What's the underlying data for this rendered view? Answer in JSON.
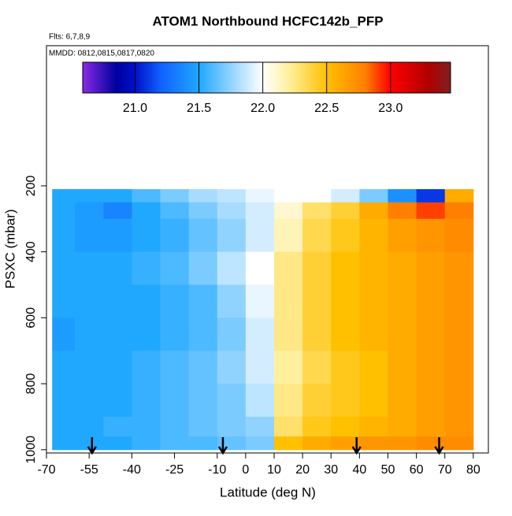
{
  "chart_data": {
    "type": "heatmap",
    "title": "ATOM1 Northbound HCFC142b_PFP",
    "subtitle": "Flts: 6,7,8,9",
    "annotation": "MMDD: 0812,0815,0817,0820",
    "x_label": "Latitude (deg N)",
    "y_label": "PSXC (mbar)",
    "x": [
      -68,
      -60,
      -50,
      -40,
      -30,
      -20,
      -10,
      0,
      10,
      20,
      30,
      40,
      50,
      60,
      70,
      80
    ],
    "y": [
      210,
      250,
      300,
      400,
      500,
      600,
      700,
      800,
      900,
      960,
      1000
    ],
    "values": [
      [
        21.5,
        21.5,
        21.5,
        21.6,
        21.7,
        21.8,
        21.85,
        21.95,
        22.0,
        22.0,
        21.9,
        21.7,
        21.4,
        21.1,
        22.6
      ],
      [
        21.5,
        21.45,
        21.35,
        21.5,
        21.6,
        21.7,
        21.8,
        21.9,
        22.1,
        22.3,
        22.4,
        22.6,
        22.8,
        22.9,
        22.8
      ],
      [
        21.5,
        21.45,
        21.45,
        21.5,
        21.55,
        21.65,
        21.75,
        21.9,
        22.15,
        22.35,
        22.45,
        22.55,
        22.65,
        22.7,
        22.75
      ],
      [
        21.5,
        21.5,
        21.5,
        21.55,
        21.6,
        21.7,
        21.85,
        22.0,
        22.25,
        22.4,
        22.5,
        22.55,
        22.6,
        22.65,
        22.7
      ],
      [
        21.5,
        21.5,
        21.5,
        21.5,
        21.55,
        21.6,
        21.75,
        21.95,
        22.25,
        22.4,
        22.5,
        22.55,
        22.6,
        22.65,
        22.7
      ],
      [
        21.45,
        21.5,
        21.5,
        21.5,
        21.55,
        21.6,
        21.7,
        21.9,
        22.25,
        22.4,
        22.5,
        22.55,
        22.6,
        22.65,
        22.7
      ],
      [
        21.5,
        21.5,
        21.5,
        21.55,
        21.6,
        21.65,
        21.75,
        21.9,
        22.2,
        22.35,
        22.45,
        22.5,
        22.6,
        22.65,
        22.7
      ],
      [
        21.5,
        21.5,
        21.5,
        21.55,
        21.6,
        21.65,
        21.7,
        21.85,
        22.25,
        22.4,
        22.45,
        22.5,
        22.6,
        22.65,
        22.7
      ],
      [
        21.5,
        21.5,
        21.55,
        21.55,
        21.6,
        21.65,
        21.7,
        21.75,
        22.3,
        22.45,
        22.5,
        22.55,
        22.6,
        22.65,
        22.7
      ],
      [
        21.5,
        21.5,
        21.5,
        21.55,
        21.6,
        21.6,
        21.65,
        21.7,
        22.5,
        22.6,
        22.65,
        22.7,
        22.7,
        22.75,
        22.75
      ]
    ],
    "xlim": [
      -70,
      85.3
    ],
    "ylim": [
      1010,
      -225
    ],
    "xticks": [
      -70,
      -55,
      -40,
      -25,
      -10,
      0,
      10,
      20,
      30,
      40,
      50,
      60,
      70,
      80
    ],
    "yticks": [
      200,
      400,
      600,
      800,
      1000
    ],
    "colorscale": [
      [
        20.59,
        "#8a2be2"
      ],
      [
        20.85,
        "#0000a0"
      ],
      [
        21.0,
        "#0010c8"
      ],
      [
        21.2,
        "#1060ff"
      ],
      [
        21.5,
        "#20a8ff"
      ],
      [
        21.8,
        "#a8dcff"
      ],
      [
        22.0,
        "#ffffff"
      ],
      [
        22.2,
        "#fff0a0"
      ],
      [
        22.5,
        "#ffc000"
      ],
      [
        22.8,
        "#ff8000"
      ],
      [
        23.0,
        "#ff0000"
      ],
      [
        23.3,
        "#b00000"
      ],
      [
        23.47,
        "#802020"
      ]
    ],
    "colorbar_lim": [
      20.59,
      23.47
    ],
    "colorbar_ticks": [
      {
        "value": 21,
        "label": "21.0"
      },
      21.5,
      {
        "value": 22,
        "label": "22.0"
      },
      22.5,
      {
        "value": 23,
        "label": "23.0"
      }
    ],
    "arrows": [
      -54,
      -8,
      39,
      68
    ]
  }
}
